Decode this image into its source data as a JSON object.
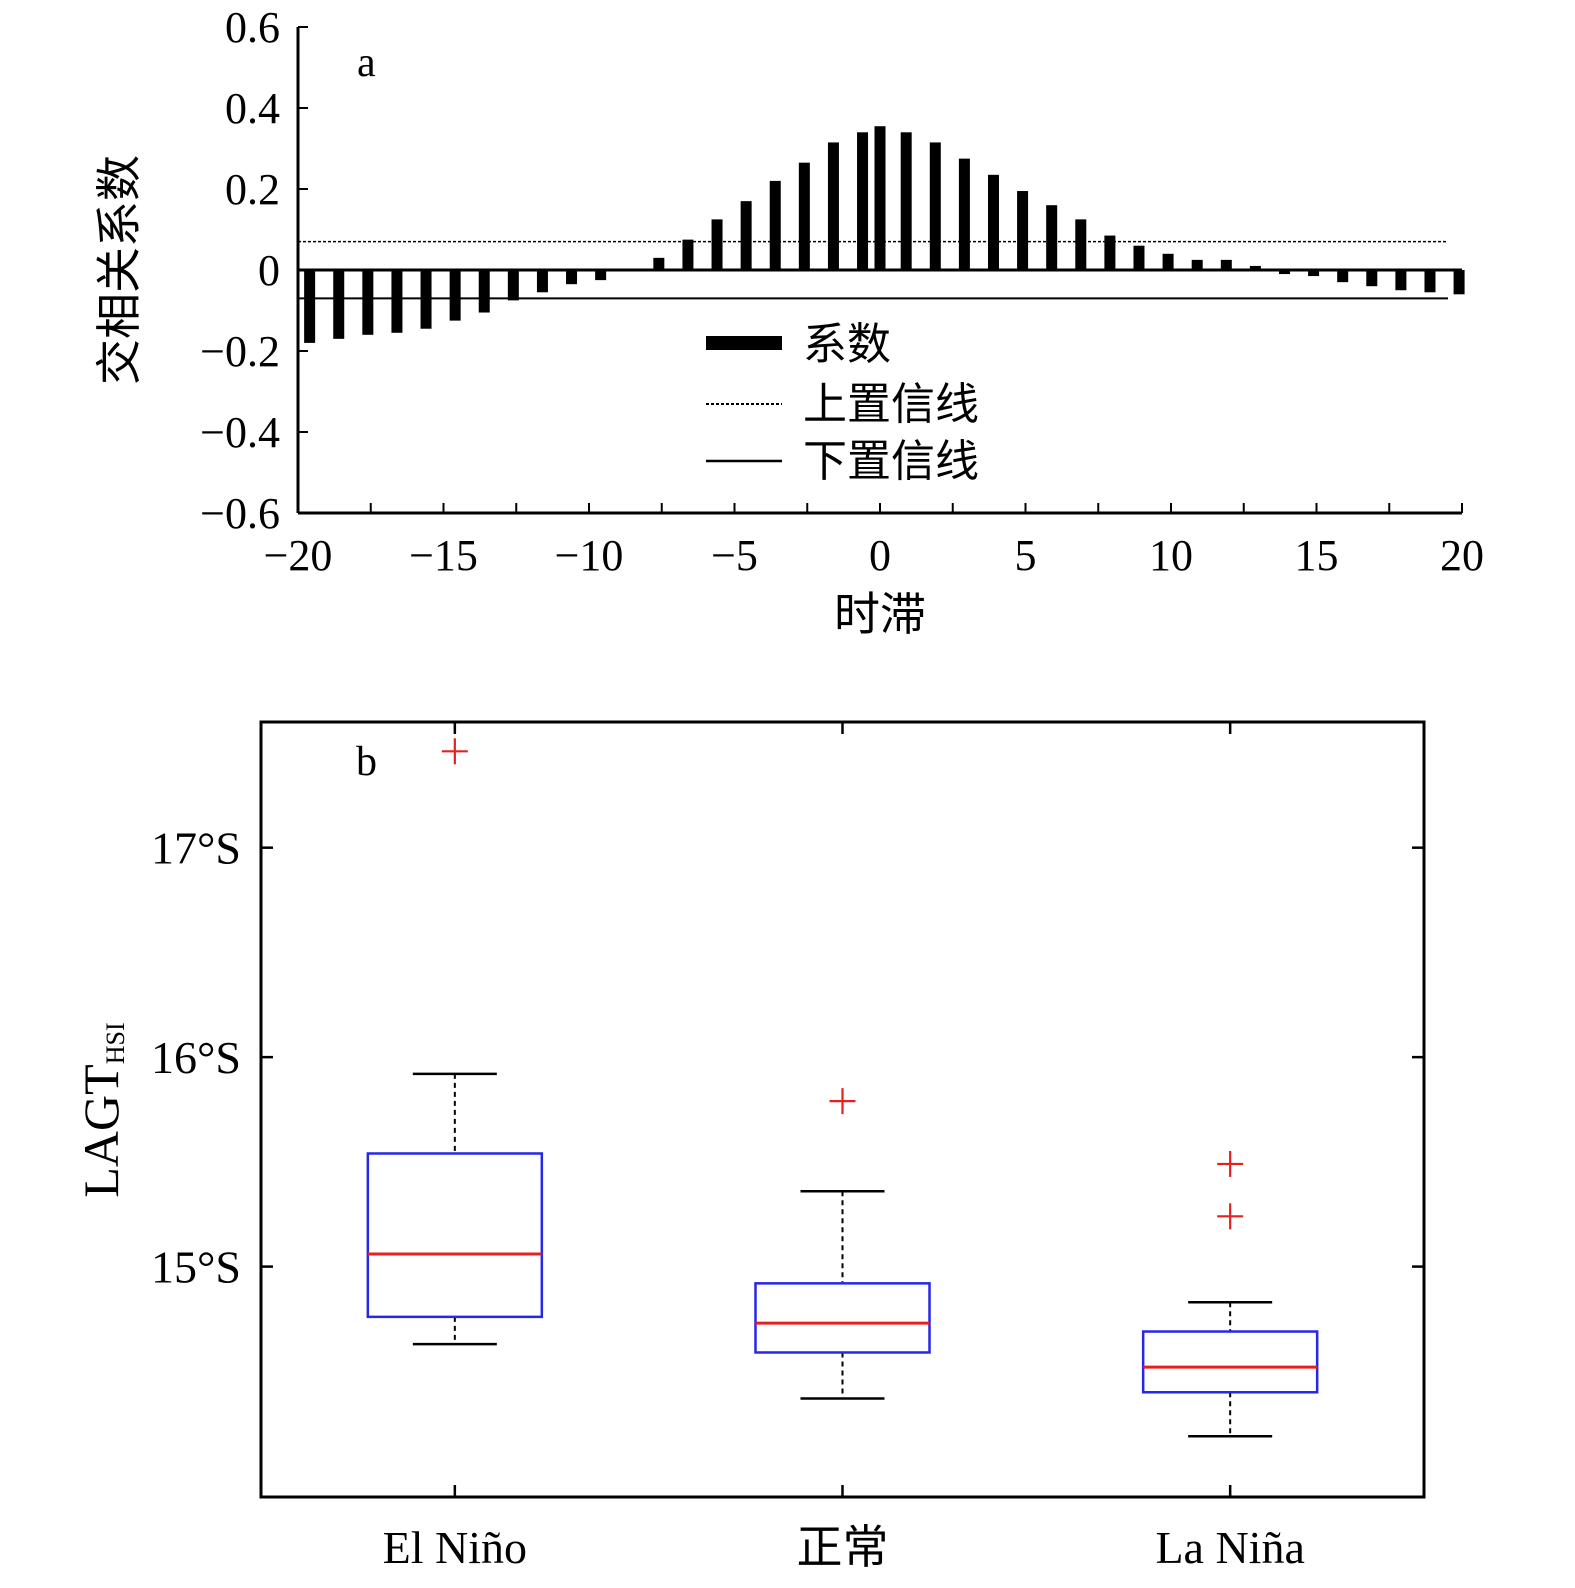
{
  "chart_data": [
    {
      "type": "bar",
      "panel_label": "a",
      "xlabel": "时滞",
      "ylabel": "交相关系数",
      "xlim": [
        -20,
        20
      ],
      "ylim": [
        -0.6,
        0.6
      ],
      "xticks": [
        "−20",
        "−15",
        "−10",
        "−5",
        "0",
        "5",
        "10",
        "15",
        "20"
      ],
      "xtick_values": [
        -20,
        -15,
        -10,
        -5,
        0,
        5,
        10,
        15,
        20
      ],
      "yticks": [
        "0.6",
        "0.4",
        "0.2",
        "0",
        "−0.2",
        "−0.4",
        "−0.6"
      ],
      "ytick_values": [
        0.6,
        0.4,
        0.2,
        0,
        -0.2,
        -0.4,
        -0.6
      ],
      "x": [
        -19.6,
        -18.6,
        -17.6,
        -16.6,
        -15.6,
        -14.6,
        -13.6,
        -12.6,
        -11.6,
        -10.6,
        -9.6,
        -8.6,
        -7.6,
        -6.6,
        -5.6,
        -4.6,
        -3.6,
        -2.6,
        -1.6,
        -0.6,
        0,
        0.9,
        1.9,
        2.9,
        3.9,
        4.9,
        5.9,
        6.9,
        7.9,
        8.9,
        9.9,
        10.9,
        11.9,
        12.9,
        13.9,
        14.9,
        15.9,
        16.9,
        17.9,
        18.9,
        19.9
      ],
      "values": [
        -0.18,
        -0.17,
        -0.16,
        -0.155,
        -0.145,
        -0.125,
        -0.105,
        -0.075,
        -0.055,
        -0.035,
        -0.025,
        0,
        0.03,
        0.075,
        0.125,
        0.17,
        0.22,
        0.265,
        0.315,
        0.34,
        0.355,
        0.34,
        0.315,
        0.275,
        0.235,
        0.195,
        0.16,
        0.125,
        0.085,
        0.06,
        0.04,
        0.025,
        0.025,
        0.01,
        -0.01,
        -0.015,
        -0.03,
        -0.04,
        -0.05,
        -0.055,
        -0.06
      ],
      "upper_confidence": 0.07,
      "lower_confidence": -0.07,
      "legend": [
        "系数",
        "上置信线",
        "下置信线"
      ],
      "legend_position": "center"
    },
    {
      "type": "box",
      "panel_label": "b",
      "ylabel": "LAGT",
      "ylabel_subscript": "HSI",
      "categories": [
        "El Niño",
        "正常",
        "La Niña"
      ],
      "yticks": [
        "17°S",
        "16°S",
        "15°S"
      ],
      "ytick_values": [
        17,
        16,
        15
      ],
      "ylim": [
        13.9,
        17.6
      ],
      "boxes": [
        {
          "whisker_high": 15.92,
          "q3": 15.54,
          "median": 15.06,
          "q1": 14.76,
          "whisker_low": 14.63,
          "outliers": [
            17.46
          ]
        },
        {
          "whisker_high": 15.36,
          "q3": 14.92,
          "median": 14.73,
          "q1": 14.59,
          "whisker_low": 14.37,
          "outliers": [
            15.79
          ]
        },
        {
          "whisker_high": 14.83,
          "q3": 14.69,
          "median": 14.52,
          "q1": 14.4,
          "whisker_low": 14.19,
          "outliers": [
            15.49,
            15.24
          ]
        }
      ],
      "colors": {
        "box": "#2727e6",
        "median": "#e62020",
        "outlier": "#e62020",
        "whisker": "#000000"
      }
    }
  ]
}
